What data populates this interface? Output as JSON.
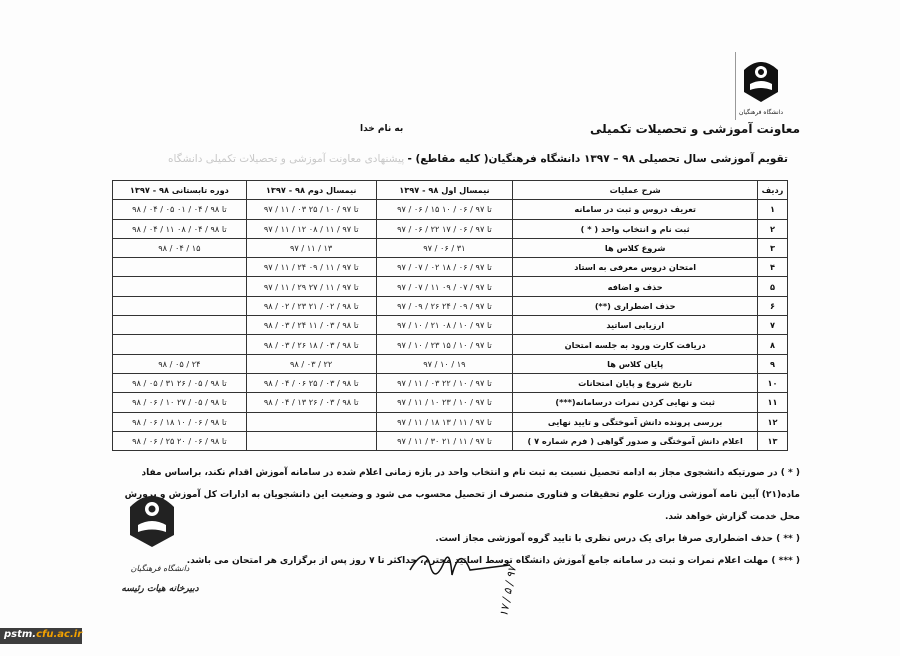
{
  "header": {
    "department": "معاونت آموزشی و تحصیلات تکمیلی",
    "bismillah": "به نام خدا",
    "title": "تقویم آموزشی سال تحصیلی ۹۸ – ۱۳۹۷ دانشگاه فرهنگیان( کلیه مقاطع) -",
    "title_faint": " پیشنهادی معاونت آموزشی و تحصیلات تکمیلی دانشگاه",
    "logo_text": "دانشگاه فرهنگیان"
  },
  "table": {
    "headers": [
      "ردیف",
      "شرح عملیات",
      "نیمسال اول ۹۸ - ۱۳۹۷",
      "نیمسال دوم ۹۸ - ۱۳۹۷",
      "دوره تابستانی ۹۸ - ۱۳۹۷"
    ],
    "rows": [
      [
        "۱",
        "تعریف دروس و ثبت در سامانه",
        "۹۷ / ۰۶ / ۱۵ تا ۹۷ / ۰۶ / ۱۰",
        "۹۷ / ۱۱ / ۰۳ تا ۹۷ / ۱۰ / ۲۵",
        "۹۸ / ۰۴ / ۰۵ تا ۹۸ / ۰۴ / ۰۱"
      ],
      [
        "۲",
        "ثبت نام و انتخاب واحد ( * )",
        "۹۷ / ۰۶ / ۲۲ تا ۹۷ / ۰۶ / ۱۷",
        "۹۷ / ۱۱ / ۱۲ تا ۹۷ / ۱۱ / ۰۸",
        "۹۸ / ۰۴ / ۱۱ تا ۹۸ / ۰۴ / ۰۸"
      ],
      [
        "۳",
        "شروع کلاس ها",
        "۹۷ / ۰۶ / ۳۱",
        "۹۷ / ۱۱ / ۱۳",
        "۹۸ / ۰۴ / ۱۵"
      ],
      [
        "۴",
        "امتحان دروس معرفی به استاد",
        "۹۷ / ۰۷ / ۰۲ تا ۹۷ / ۰۶ / ۱۸",
        "۹۷ / ۱۱ / ۲۴ تا ۹۷ / ۱۱ / ۰۹",
        ""
      ],
      [
        "۵",
        "حذف و اضافه",
        "۹۷ / ۰۷ / ۱۱ تا ۹۷ / ۰۷ / ۰۹",
        "۹۷ / ۱۱ / ۲۹ تا ۹۷ / ۱۱ / ۲۷",
        ""
      ],
      [
        "۶",
        "حذف اضطراری (**)",
        "۹۷ / ۰۹ / ۲۶ تا ۹۷ / ۰۹ / ۲۴",
        "۹۸ / ۰۲ / ۲۳ تا ۹۸ / ۰۲ / ۲۱",
        ""
      ],
      [
        "۷",
        "ارزیابی اساتید",
        "۹۷ / ۱۰ / ۲۱ تا ۹۷ / ۱۰ / ۰۸",
        "۹۸ / ۰۳ / ۲۴ تا ۹۸ / ۰۳ / ۱۱",
        ""
      ],
      [
        "۸",
        "دریافت کارت ورود به جلسه امتحان",
        "۹۷ / ۱۰ / ۲۳ تا ۹۷ / ۱۰ / ۱۵",
        "۹۸ / ۰۳ / ۲۶ تا ۹۸ / ۰۳ / ۱۸",
        ""
      ],
      [
        "۹",
        "پایان کلاس ها",
        "۹۷ / ۱۰ / ۱۹",
        "۹۸ / ۰۳ / ۲۲",
        "۹۸ / ۰۵ / ۲۴"
      ],
      [
        "۱۰",
        "تاریخ شروع و پایان امتحانات",
        "۹۷ / ۱۱ / ۰۳ تا ۹۷ / ۱۰ / ۲۲",
        "۹۸ / ۰۴ / ۰۶ تا ۹۸ / ۰۳ / ۲۵",
        "۹۸ / ۰۵ / ۳۱ تا ۹۸ / ۰۵ / ۲۶"
      ],
      [
        "۱۱",
        "ثبت و نهایی کردن نمرات درسامانه(***)",
        "۹۷ / ۱۱ / ۱۰ تا ۹۷ / ۱۰ / ۲۳",
        "۹۸ / ۰۴ / ۱۳ تا ۹۸ / ۰۳ / ۲۶",
        "۹۸ / ۰۶ / ۱۰ تا ۹۸ / ۰۵ / ۲۷"
      ],
      [
        "۱۲",
        "بررسی پرونده دانش آموختگی و تایید نهایی",
        "۹۷ / ۱۱ / ۱۸ تا ۹۷ / ۱۱ / ۱۳",
        "",
        "۹۸ / ۰۶ / ۱۸ تا ۹۸ / ۰۶ / ۱۰"
      ],
      [
        "۱۳",
        "اعلام دانش آموختگی و صدور گواهی ( فرم شماره ۷ )",
        "۹۷ / ۱۱ / ۳۰ تا ۹۷ / ۱۱ / ۲۱",
        "",
        "۹۸ / ۰۶ / ۲۵ تا ۹۸ / ۰۶ / ۲۰"
      ]
    ]
  },
  "notes": [
    "( * ) در صورتیکه دانشجوی مجاز به ادامه تحصیل نسبت به ثبت نام و انتخاب واحد در بازه زمانی اعلام شده در سامانه آموزش اقدام نکند، براساس مفاد ماده(۲۱) آیین نامه آموزشی وزارت علوم تحقیقات و فناوری منصرف از تحصیل محسوب می شود و وضعیت این دانشجویان به ادارات کل آموزش و پرورش محل خدمت گزارش خواهد شد.",
    "( ** ) حذف اضطراری صرفا برای یک درس نظری با تایید گروه آموزشی مجاز است.",
    "( *** ) مهلت اعلام نمرات و ثبت در سامانه جامع آموزش دانشگاه توسط اساتید محترم، حداکثر تا ۷ روز پس از برگزاری هر امتحان می باشد."
  ],
  "stamp": {
    "text": "دانشگاه فرهنگیان دبیرخانه هیات رئیسه"
  },
  "signature": {
    "date": "۱۷ / ۵ / ۹۷"
  },
  "watermark": {
    "part1": "pstm.",
    "part2": "cfu.ac.ir"
  }
}
